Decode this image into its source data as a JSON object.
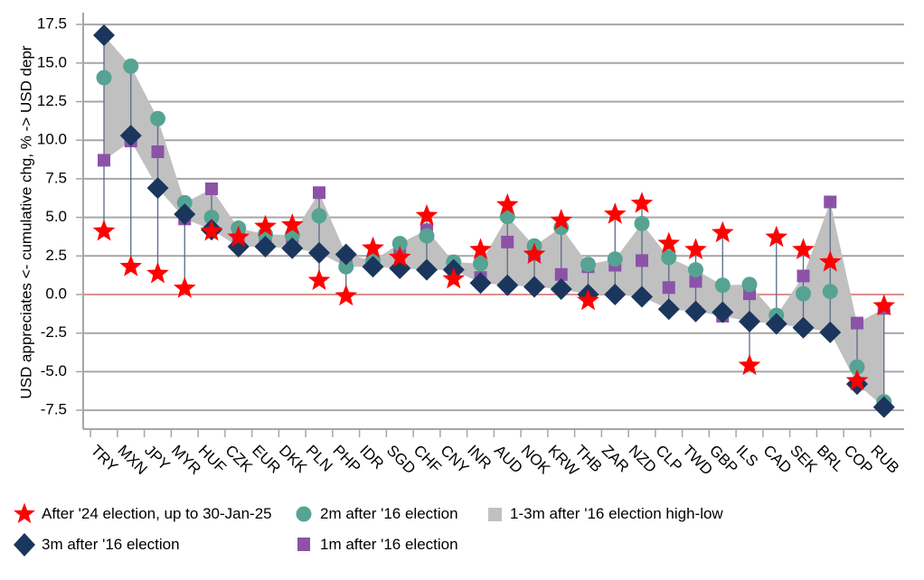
{
  "chart_data": {
    "type": "scatter",
    "title": "",
    "ylabel": "USD appreciates <- cumulative chg, % -> USD depr",
    "xlabel": "",
    "ylim": [
      -8.5,
      18.5
    ],
    "yticks": [
      "17.5",
      "15.0",
      "12.5",
      "10.0",
      "7.5",
      "5.0",
      "2.5",
      "0.0",
      "-2.5",
      "-5.0",
      "-7.5"
    ],
    "ytick_values": [
      17.5,
      15,
      12.5,
      10,
      7.5,
      5,
      2.5,
      0,
      -2.5,
      -5,
      -7.5
    ],
    "grid": true,
    "legend_position": "bottom",
    "categories": [
      "TRY",
      "MXN",
      "JPY",
      "MYR",
      "HUF",
      "CZK",
      "EUR",
      "DKK",
      "PLN",
      "PHP",
      "IDR",
      "SGD",
      "CHF",
      "CNY",
      "INR",
      "AUD",
      "NOK",
      "KRW",
      "THB",
      "ZAR",
      "NZD",
      "CLP",
      "TWD",
      "GBP",
      "ILS",
      "CAD",
      "SEK",
      "BRL",
      "COP",
      "RUB"
    ],
    "series": [
      {
        "name": "After '24 election, up to 30-Jan-25",
        "marker": "star",
        "color": "#ff0000",
        "values": [
          4.1,
          1.8,
          1.35,
          0.4,
          4.1,
          3.7,
          4.4,
          4.5,
          0.9,
          -0.1,
          3.0,
          2.4,
          5.1,
          1.0,
          2.9,
          5.8,
          2.6,
          4.8,
          -0.4,
          5.2,
          5.9,
          3.3,
          2.9,
          4.0,
          -4.6,
          3.7,
          2.9,
          2.1,
          -5.6,
          -0.75
        ]
      },
      {
        "name": "2m after '16 election",
        "marker": "circle",
        "color": "#56a393",
        "values": [
          14.05,
          14.8,
          11.4,
          5.95,
          5.0,
          4.3,
          3.9,
          3.85,
          5.1,
          1.8,
          2.2,
          3.3,
          3.8,
          2.1,
          2.0,
          5.05,
          3.15,
          4.35,
          1.95,
          2.3,
          4.6,
          2.4,
          1.6,
          0.6,
          0.65,
          -1.35,
          0.05,
          0.2,
          -4.7,
          -6.95
        ]
      },
      {
        "name": "1-3m after '16 election high-low",
        "marker": "band",
        "color": "#c0c0c0"
      },
      {
        "name": "3m after '16 election",
        "marker": "diamond",
        "color": "#1b365d",
        "values": [
          16.8,
          10.3,
          6.9,
          5.2,
          4.2,
          3.1,
          3.1,
          3.0,
          2.7,
          2.6,
          1.8,
          1.7,
          1.6,
          1.6,
          0.75,
          0.6,
          0.5,
          0.35,
          0.0,
          0.0,
          -0.15,
          -0.95,
          -1.1,
          -1.15,
          -1.75,
          -1.9,
          -2.15,
          -2.45,
          -5.8,
          -7.3
        ]
      },
      {
        "name": "1m after '16 election",
        "marker": "square",
        "color": "#8c52a8",
        "values": [
          8.7,
          9.95,
          9.25,
          4.9,
          6.85,
          3.8,
          3.65,
          3.6,
          6.6,
          2.3,
          2.0,
          2.7,
          4.2,
          1.7,
          1.1,
          3.4,
          2.6,
          1.3,
          1.8,
          1.9,
          2.2,
          0.45,
          0.85,
          -1.4,
          0.05,
          -1.55,
          1.2,
          6.0,
          -1.85,
          -0.9
        ]
      }
    ],
    "zero_line_color": "#c0504d",
    "grid_color": "#a6a6a6",
    "stem_color": "#5a6a85"
  },
  "legend": {
    "items": [
      {
        "label": "After '24 election, up to 30-Jan-25"
      },
      {
        "label": "2m after '16 election"
      },
      {
        "label": "1-3m after '16 election high-low"
      },
      {
        "label": "3m after '16 election"
      },
      {
        "label": "1m after '16 election"
      }
    ]
  }
}
